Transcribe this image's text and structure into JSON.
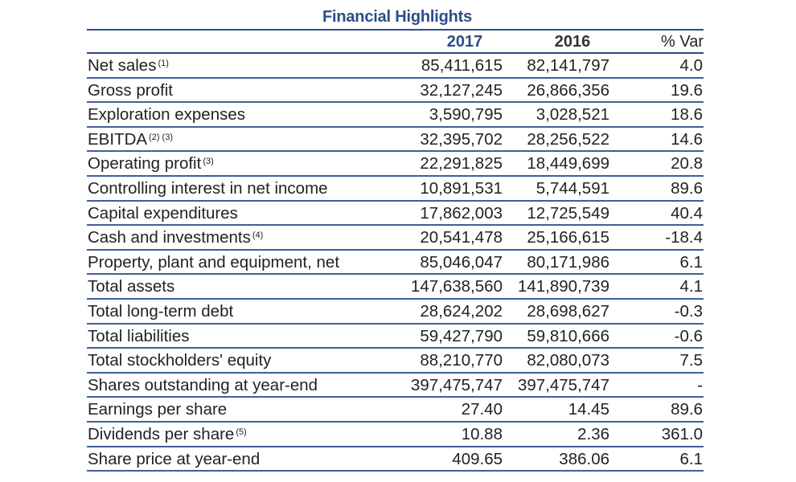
{
  "title": "Financial Highlights",
  "columns": {
    "y2017": "2017",
    "y2016": "2016",
    "var": "% Var"
  },
  "rows": [
    {
      "label": "Net sales",
      "note": "(1)",
      "v2017": "85,411,615",
      "v2016": "82,141,797",
      "var": "4.0"
    },
    {
      "label": "Gross profit",
      "note": "",
      "v2017": "32,127,245",
      "v2016": "26,866,356",
      "var": "19.6"
    },
    {
      "label": "Exploration expenses",
      "note": "",
      "v2017": "3,590,795",
      "v2016": "3,028,521",
      "var": "18.6"
    },
    {
      "label": "EBITDA",
      "note": "(2) (3)",
      "v2017": "32,395,702",
      "v2016": "28,256,522",
      "var": "14.6"
    },
    {
      "label": "Operating profit",
      "note": "(3)",
      "v2017": "22,291,825",
      "v2016": "18,449,699",
      "var": "20.8"
    },
    {
      "label": "Controlling interest in net income",
      "note": "",
      "v2017": "10,891,531",
      "v2016": "5,744,591",
      "var": "89.6"
    },
    {
      "label": "Capital expenditures",
      "note": "",
      "v2017": "17,862,003",
      "v2016": "12,725,549",
      "var": "40.4"
    },
    {
      "label": "Cash and investments",
      "note": "(4)",
      "v2017": "20,541,478",
      "v2016": "25,166,615",
      "var": "-18.4"
    },
    {
      "label": "Property, plant and equipment, net",
      "note": "",
      "v2017": "85,046,047",
      "v2016": "80,171,986",
      "var": "6.1"
    },
    {
      "label": "Total assets",
      "note": "",
      "v2017": "147,638,560",
      "v2016": "141,890,739",
      "var": "4.1"
    },
    {
      "label": "Total long-term debt",
      "note": "",
      "v2017": "28,624,202",
      "v2016": "28,698,627",
      "var": "-0.3"
    },
    {
      "label": "Total liabilities",
      "note": "",
      "v2017": "59,427,790",
      "v2016": "59,810,666",
      "var": "-0.6"
    },
    {
      "label": "Total stockholders' equity",
      "note": "",
      "v2017": "88,210,770",
      "v2016": "82,080,073",
      "var": "7.5"
    },
    {
      "label": "Shares outstanding at year-end",
      "note": "",
      "v2017": "397,475,747",
      "v2016": "397,475,747",
      "var": "-"
    },
    {
      "label": "Earnings per share",
      "note": "",
      "v2017": "27.40",
      "v2016": "14.45",
      "var": "89.6"
    },
    {
      "label": "Dividends per share",
      "note": "(5)",
      "v2017": "10.88",
      "v2016": "2.36",
      "var": "361.0"
    },
    {
      "label": "Share price at year-end",
      "note": "",
      "v2017": "409.65",
      "v2016": "386.06",
      "var": "6.1"
    }
  ]
}
